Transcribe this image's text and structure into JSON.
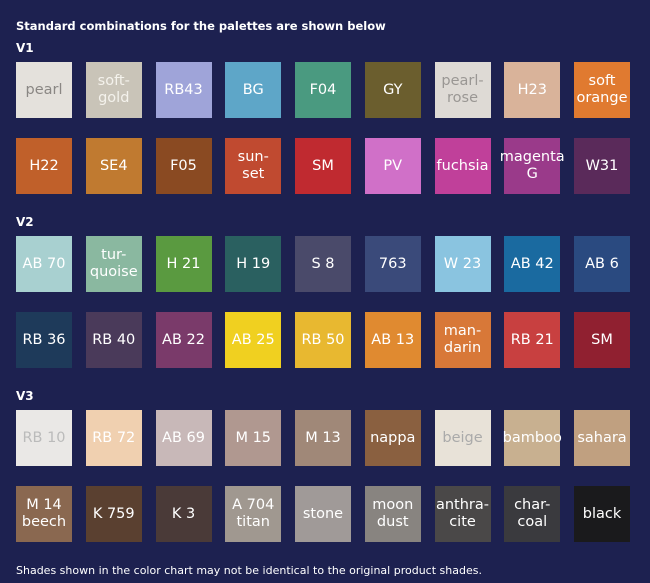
{
  "header": {
    "title": "Standard combinations for the palettes are shown below"
  },
  "sections": [
    {
      "title": "V1",
      "swatches": [
        {
          "label": [
            "pearl"
          ],
          "color": "#e4e1dc",
          "text_color": "#8a8784"
        },
        {
          "label": [
            "soft-",
            "gold"
          ],
          "color": "#c9c4b8",
          "text_color": "#f4f2ec"
        },
        {
          "label": [
            "RB43"
          ],
          "color": "#9fa4d9"
        },
        {
          "label": [
            "BG"
          ],
          "color": "#5ea6c8"
        },
        {
          "label": [
            "F04"
          ],
          "color": "#4a9a80"
        },
        {
          "label": [
            "GY"
          ],
          "color": "#6b5e2e"
        },
        {
          "label": [
            "pearl-",
            "rose"
          ],
          "color": "#dedad5",
          "text_color": "#9a9794"
        },
        {
          "label": [
            "H23"
          ],
          "color": "#d9b39a"
        },
        {
          "label": [
            "soft",
            "orange"
          ],
          "color": "#e07a30"
        },
        {
          "label": [
            "H22"
          ],
          "color": "#c0602a"
        },
        {
          "label": [
            "SE4"
          ],
          "color": "#c07a30"
        },
        {
          "label": [
            "F05"
          ],
          "color": "#8a4a22"
        },
        {
          "label": [
            "sun-",
            "set"
          ],
          "color": "#c04a30"
        },
        {
          "label": [
            "SM"
          ],
          "color": "#c02a30"
        },
        {
          "label": [
            "PV"
          ],
          "color": "#d070c8"
        },
        {
          "label": [
            "fuchsia"
          ],
          "color": "#c0409a"
        },
        {
          "label": [
            "magenta",
            "G"
          ],
          "color": "#9a3a8a"
        },
        {
          "label": [
            "W31"
          ],
          "color": "#5a2a5a"
        }
      ]
    },
    {
      "title": "V2",
      "swatches": [
        {
          "label": [
            "AB 70"
          ],
          "color": "#a8d0d0"
        },
        {
          "label": [
            "tur-",
            "quoise"
          ],
          "color": "#8ab8a0"
        },
        {
          "label": [
            "H 21"
          ],
          "color": "#5a9a40"
        },
        {
          "label": [
            "H 19"
          ],
          "color": "#2a6060"
        },
        {
          "label": [
            "S 8"
          ],
          "color": "#4a4a6a"
        },
        {
          "label": [
            "763"
          ],
          "color": "#3a4a7a"
        },
        {
          "label": [
            "W 23"
          ],
          "color": "#8ac4e0"
        },
        {
          "label": [
            "AB 42"
          ],
          "color": "#1a6aa0"
        },
        {
          "label": [
            "AB 6"
          ],
          "color": "#2a4a80"
        },
        {
          "label": [
            "RB 36"
          ],
          "color": "#1e3a5a"
        },
        {
          "label": [
            "RB 40"
          ],
          "color": "#4a3a5a"
        },
        {
          "label": [
            "AB 22"
          ],
          "color": "#7a3a6a"
        },
        {
          "label": [
            "AB 25"
          ],
          "color": "#f0d020"
        },
        {
          "label": [
            "RB 50"
          ],
          "color": "#e8b830"
        },
        {
          "label": [
            "AB 13"
          ],
          "color": "#e08a30"
        },
        {
          "label": [
            "man-",
            "darin"
          ],
          "color": "#d87838"
        },
        {
          "label": [
            "RB 21"
          ],
          "color": "#c84040"
        },
        {
          "label": [
            "SM"
          ],
          "color": "#902030"
        }
      ]
    },
    {
      "title": "V3",
      "swatches": [
        {
          "label": [
            "RB 10"
          ],
          "color": "#eae8e6",
          "text_color": "#bbbbbb"
        },
        {
          "label": [
            "RB 72"
          ],
          "color": "#f0d0b0"
        },
        {
          "label": [
            "AB 69"
          ],
          "color": "#c8b8b8"
        },
        {
          "label": [
            "M 15"
          ],
          "color": "#b09890"
        },
        {
          "label": [
            "M 13"
          ],
          "color": "#a08878"
        },
        {
          "label": [
            "nappa"
          ],
          "color": "#8a6040"
        },
        {
          "label": [
            "beige"
          ],
          "color": "#e8e2d8",
          "text_color": "#aaaaaa"
        },
        {
          "label": [
            "bamboo"
          ],
          "color": "#c8b090"
        },
        {
          "label": [
            "sahara"
          ],
          "color": "#c0a080"
        },
        {
          "label": [
            "M 14",
            "beech"
          ],
          "color": "#8a6850"
        },
        {
          "label": [
            "K 759"
          ],
          "color": "#5a4030"
        },
        {
          "label": [
            "K 3"
          ],
          "color": "#4a3a38"
        },
        {
          "label": [
            "A 704",
            "titan"
          ],
          "color": "#a09890"
        },
        {
          "label": [
            "stone"
          ],
          "color": "#a09a98"
        },
        {
          "label": [
            "moon",
            "dust"
          ],
          "color": "#888480"
        },
        {
          "label": [
            "anthra-",
            "cite"
          ],
          "color": "#4a4848"
        },
        {
          "label": [
            "char-",
            "coal"
          ],
          "color": "#3a3a3e"
        },
        {
          "label": [
            "black"
          ],
          "color": "#1a1a1c"
        }
      ]
    }
  ],
  "footer": {
    "note": "Shades shown in the color chart may not be identical to the original product shades."
  }
}
